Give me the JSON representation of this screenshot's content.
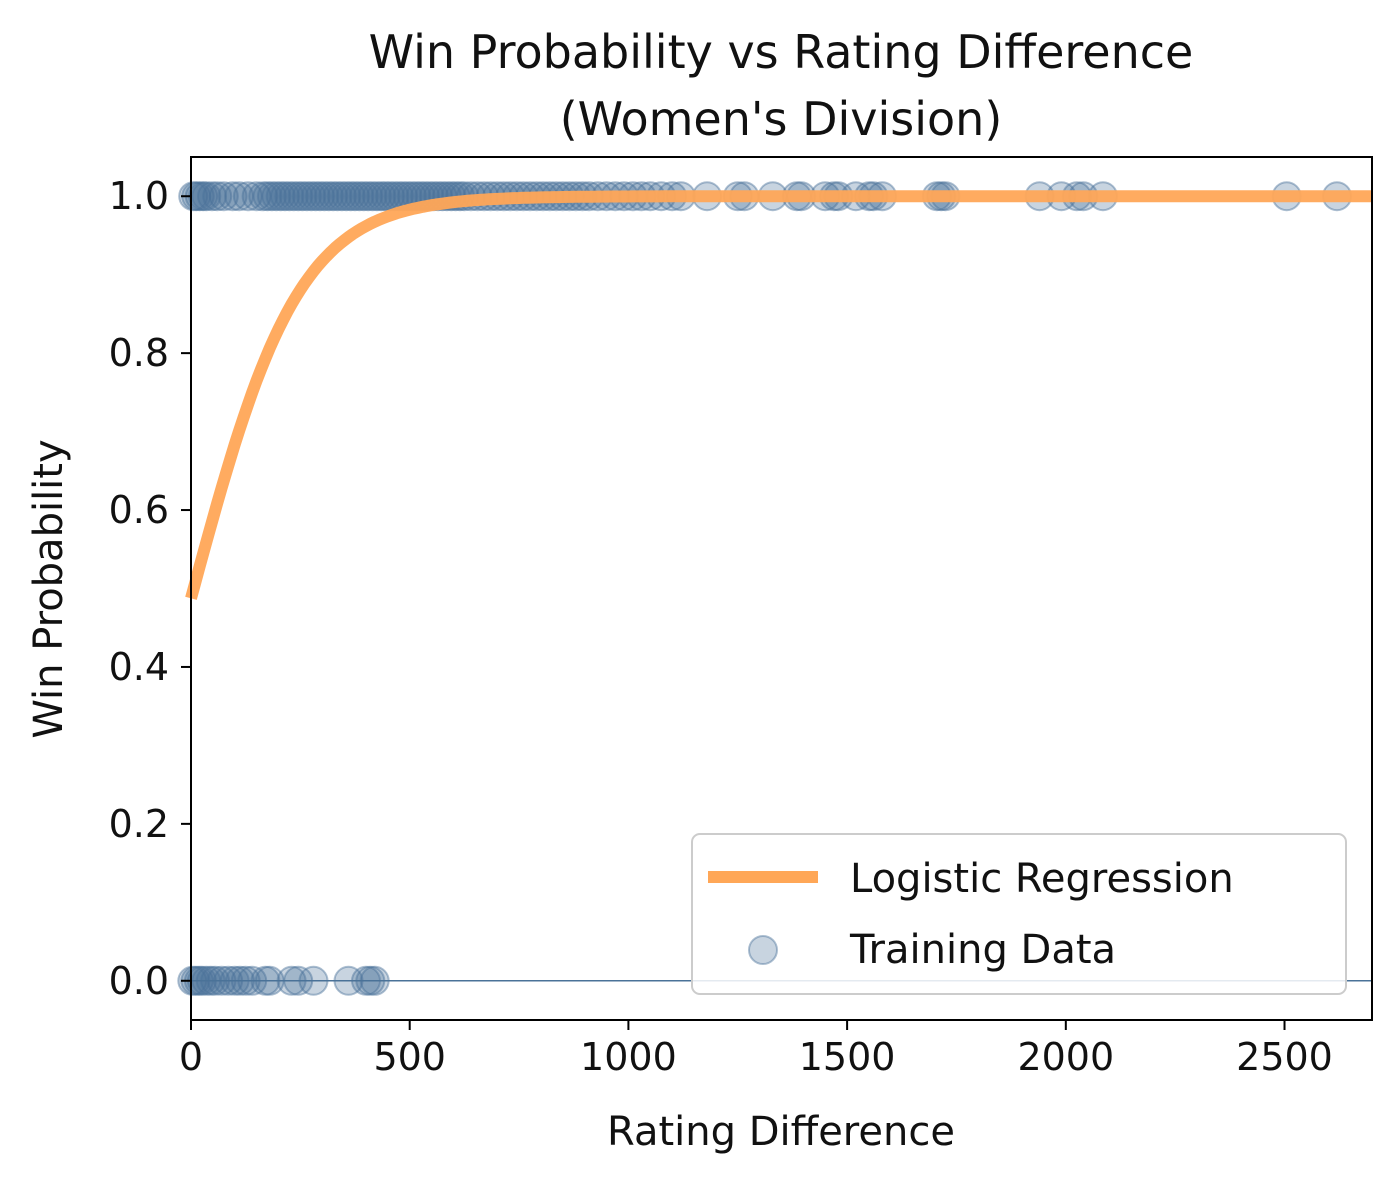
{
  "chart_data": {
    "type": "scatter",
    "title": "Win Probability vs Rating Difference",
    "subtitle": "(Women's Division)",
    "xlabel": "Rating Difference",
    "ylabel": "Win Probability",
    "xlim": [
      0,
      2700
    ],
    "ylim": [
      -0.05,
      1.05
    ],
    "xticks": [
      0,
      500,
      1000,
      1500,
      2000,
      2500
    ],
    "xtick_labels": [
      "0",
      "500",
      "1000",
      "1500",
      "2000",
      "2500"
    ],
    "yticks": [
      0.0,
      0.2,
      0.4,
      0.6,
      0.8,
      1.0
    ],
    "ytick_labels": [
      "0.0",
      "0.2",
      "0.4",
      "0.6",
      "0.8",
      "1.0"
    ],
    "grid": false,
    "legend_position": "lower-right",
    "colors": {
      "curve": "#FFA757",
      "points": "#4A7298",
      "axes": "#000000"
    },
    "series": [
      {
        "name": "Logistic Regression",
        "kind": "line",
        "model": "logistic",
        "intercept": -0.05,
        "slope": 0.0082,
        "x_range": [
          0,
          2700
        ]
      },
      {
        "name": "Training Data",
        "kind": "scatter",
        "points": [
          {
            "x": 5,
            "y": 1
          },
          {
            "x": 12,
            "y": 1
          },
          {
            "x": 20,
            "y": 1
          },
          {
            "x": 28,
            "y": 1
          },
          {
            "x": 35,
            "y": 1
          },
          {
            "x": 48,
            "y": 1
          },
          {
            "x": 60,
            "y": 1
          },
          {
            "x": 75,
            "y": 1
          },
          {
            "x": 95,
            "y": 1
          },
          {
            "x": 110,
            "y": 1
          },
          {
            "x": 130,
            "y": 1
          },
          {
            "x": 150,
            "y": 1
          },
          {
            "x": 165,
            "y": 1
          },
          {
            "x": 175,
            "y": 1
          },
          {
            "x": 185,
            "y": 1
          },
          {
            "x": 195,
            "y": 1
          },
          {
            "x": 205,
            "y": 1
          },
          {
            "x": 215,
            "y": 1
          },
          {
            "x": 225,
            "y": 1
          },
          {
            "x": 235,
            "y": 1
          },
          {
            "x": 245,
            "y": 1
          },
          {
            "x": 255,
            "y": 1
          },
          {
            "x": 265,
            "y": 1
          },
          {
            "x": 275,
            "y": 1
          },
          {
            "x": 285,
            "y": 1
          },
          {
            "x": 295,
            "y": 1
          },
          {
            "x": 305,
            "y": 1
          },
          {
            "x": 315,
            "y": 1
          },
          {
            "x": 325,
            "y": 1
          },
          {
            "x": 335,
            "y": 1
          },
          {
            "x": 345,
            "y": 1
          },
          {
            "x": 355,
            "y": 1
          },
          {
            "x": 365,
            "y": 1
          },
          {
            "x": 375,
            "y": 1
          },
          {
            "x": 385,
            "y": 1
          },
          {
            "x": 395,
            "y": 1
          },
          {
            "x": 405,
            "y": 1
          },
          {
            "x": 415,
            "y": 1
          },
          {
            "x": 425,
            "y": 1
          },
          {
            "x": 435,
            "y": 1
          },
          {
            "x": 445,
            "y": 1
          },
          {
            "x": 455,
            "y": 1
          },
          {
            "x": 465,
            "y": 1
          },
          {
            "x": 475,
            "y": 1
          },
          {
            "x": 485,
            "y": 1
          },
          {
            "x": 495,
            "y": 1
          },
          {
            "x": 505,
            "y": 1
          },
          {
            "x": 515,
            "y": 1
          },
          {
            "x": 525,
            "y": 1
          },
          {
            "x": 535,
            "y": 1
          },
          {
            "x": 545,
            "y": 1
          },
          {
            "x": 555,
            "y": 1
          },
          {
            "x": 565,
            "y": 1
          },
          {
            "x": 575,
            "y": 1
          },
          {
            "x": 585,
            "y": 1
          },
          {
            "x": 595,
            "y": 1
          },
          {
            "x": 605,
            "y": 1
          },
          {
            "x": 615,
            "y": 1
          },
          {
            "x": 625,
            "y": 1
          },
          {
            "x": 640,
            "y": 1
          },
          {
            "x": 655,
            "y": 1
          },
          {
            "x": 670,
            "y": 1
          },
          {
            "x": 685,
            "y": 1
          },
          {
            "x": 700,
            "y": 1
          },
          {
            "x": 715,
            "y": 1
          },
          {
            "x": 730,
            "y": 1
          },
          {
            "x": 745,
            "y": 1
          },
          {
            "x": 760,
            "y": 1
          },
          {
            "x": 775,
            "y": 1
          },
          {
            "x": 790,
            "y": 1
          },
          {
            "x": 805,
            "y": 1
          },
          {
            "x": 820,
            "y": 1
          },
          {
            "x": 835,
            "y": 1
          },
          {
            "x": 850,
            "y": 1
          },
          {
            "x": 865,
            "y": 1
          },
          {
            "x": 880,
            "y": 1
          },
          {
            "x": 895,
            "y": 1
          },
          {
            "x": 910,
            "y": 1
          },
          {
            "x": 930,
            "y": 1
          },
          {
            "x": 950,
            "y": 1
          },
          {
            "x": 970,
            "y": 1
          },
          {
            "x": 990,
            "y": 1
          },
          {
            "x": 1010,
            "y": 1
          },
          {
            "x": 1030,
            "y": 1
          },
          {
            "x": 1050,
            "y": 1
          },
          {
            "x": 1075,
            "y": 1
          },
          {
            "x": 1100,
            "y": 1
          },
          {
            "x": 1120,
            "y": 1
          },
          {
            "x": 1180,
            "y": 1
          },
          {
            "x": 1250,
            "y": 1
          },
          {
            "x": 1265,
            "y": 1
          },
          {
            "x": 1330,
            "y": 1
          },
          {
            "x": 1385,
            "y": 1
          },
          {
            "x": 1395,
            "y": 1
          },
          {
            "x": 1450,
            "y": 1
          },
          {
            "x": 1470,
            "y": 1
          },
          {
            "x": 1480,
            "y": 1
          },
          {
            "x": 1520,
            "y": 1
          },
          {
            "x": 1550,
            "y": 1
          },
          {
            "x": 1560,
            "y": 1
          },
          {
            "x": 1580,
            "y": 1
          },
          {
            "x": 1705,
            "y": 1
          },
          {
            "x": 1715,
            "y": 1
          },
          {
            "x": 1725,
            "y": 1
          },
          {
            "x": 1940,
            "y": 1
          },
          {
            "x": 1990,
            "y": 1
          },
          {
            "x": 2025,
            "y": 1
          },
          {
            "x": 2040,
            "y": 1
          },
          {
            "x": 2085,
            "y": 1
          },
          {
            "x": 2505,
            "y": 1
          },
          {
            "x": 2620,
            "y": 1
          },
          {
            "x": 3,
            "y": 0
          },
          {
            "x": 10,
            "y": 0
          },
          {
            "x": 18,
            "y": 0
          },
          {
            "x": 25,
            "y": 0
          },
          {
            "x": 35,
            "y": 0
          },
          {
            "x": 45,
            "y": 0
          },
          {
            "x": 55,
            "y": 0
          },
          {
            "x": 70,
            "y": 0
          },
          {
            "x": 85,
            "y": 0
          },
          {
            "x": 100,
            "y": 0
          },
          {
            "x": 112,
            "y": 0
          },
          {
            "x": 125,
            "y": 0
          },
          {
            "x": 140,
            "y": 0
          },
          {
            "x": 170,
            "y": 0
          },
          {
            "x": 180,
            "y": 0
          },
          {
            "x": 230,
            "y": 0
          },
          {
            "x": 245,
            "y": 0
          },
          {
            "x": 280,
            "y": 0
          },
          {
            "x": 360,
            "y": 0
          },
          {
            "x": 400,
            "y": 0
          },
          {
            "x": 410,
            "y": 0
          },
          {
            "x": 420,
            "y": 0
          }
        ]
      }
    ]
  }
}
